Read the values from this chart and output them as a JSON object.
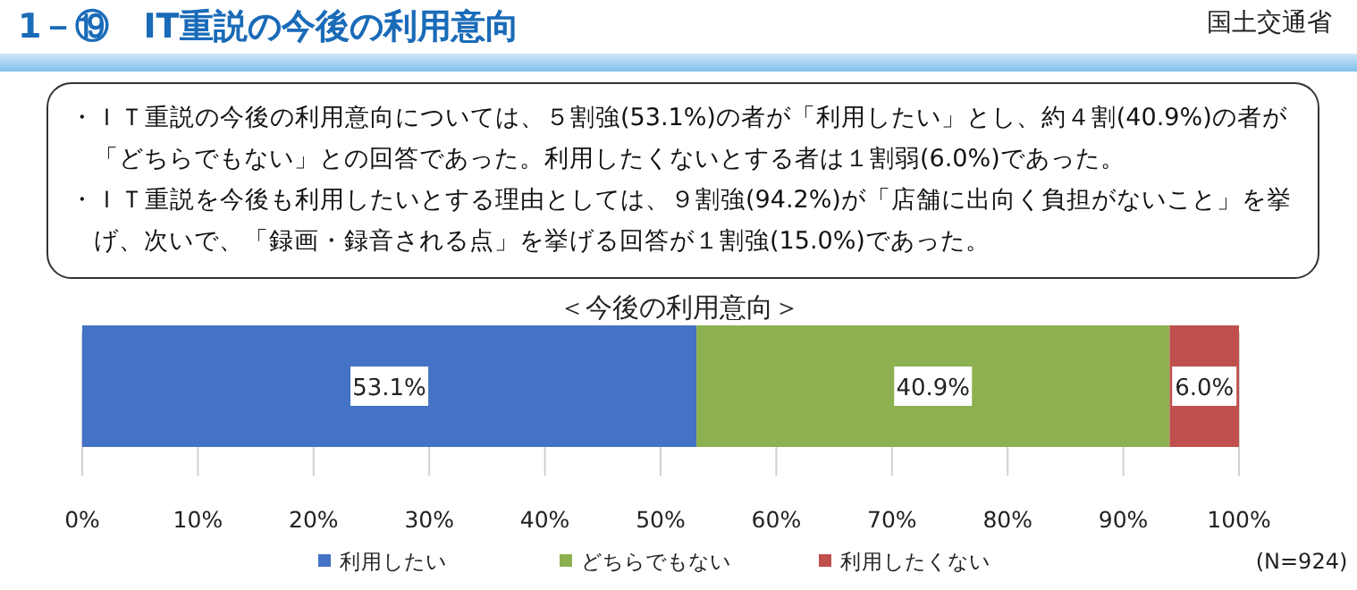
{
  "chart_data": {
    "type": "bar",
    "orientation": "horizontal",
    "stacked": true,
    "title": "1－⑲　IT重説の今後の利用意向",
    "subtitle": "＜今後の利用意向＞",
    "annotations": [
      "国土交通省",
      "・ＩＴ重説の今後の利用意向については、５割強(53.1%)の者が「利用したい」とし、約４割(40.9%)の者が「どちらでもない」との回答であった。利用したくないとする者は１割弱(6.0%)であった。",
      "・ＩＴ重説を今後も利用したいとする理由としては、９割強(94.2%)が「店舗に出向く負担がないこと」を挙げ、次いで、「録画・録音される点」を挙げる回答が１割強(15.0%)であった。",
      "(N=924)"
    ],
    "categories": [
      null
    ],
    "series": [
      {
        "name": "利用したい",
        "color": "#4472c4",
        "values": [
          53.1
        ],
        "value_labels": [
          "53.1%"
        ]
      },
      {
        "name": "どちらでもない",
        "color": "#8db050",
        "values": [
          40.9
        ],
        "value_labels": [
          "40.9%"
        ]
      },
      {
        "name": "利用したくない",
        "color": "#c0504d",
        "values": [
          6.0
        ],
        "value_labels": [
          "6.0%"
        ]
      }
    ],
    "xlim": [
      0,
      100
    ],
    "xticks": [
      {
        "value": 0,
        "label": "0%"
      },
      {
        "value": 10,
        "label": "10%"
      },
      {
        "value": 20,
        "label": "20%"
      },
      {
        "value": 30,
        "label": "30%"
      },
      {
        "value": 40,
        "label": "40%"
      },
      {
        "value": 50,
        "label": "50%"
      },
      {
        "value": 60,
        "label": "60%"
      },
      {
        "value": 70,
        "label": "70%"
      },
      {
        "value": 80,
        "label": "80%"
      },
      {
        "value": 90,
        "label": "90%"
      },
      {
        "value": 100,
        "label": "100%"
      }
    ],
    "grid": "x",
    "legend": "bottom"
  }
}
